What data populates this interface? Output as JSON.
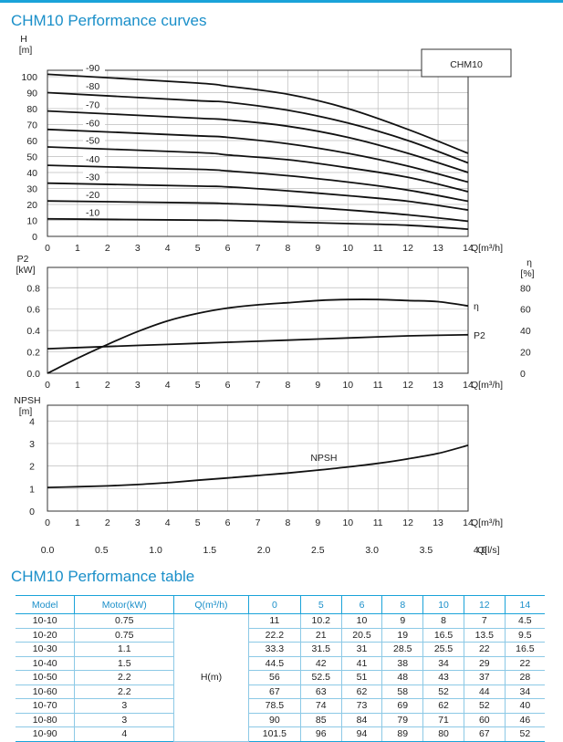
{
  "header": {
    "curves_title": "CHM10 Performance curves",
    "table_title": "CHM10 Performance table"
  },
  "chart_data": [
    {
      "type": "line",
      "name": "H-Q curves",
      "legend_box": "CHM10",
      "ylabel_top": "H",
      "ylabel_unit": "[m]",
      "xlabel": "Q[m³/h]",
      "x_ticks": [
        "0",
        "1",
        "2",
        "3",
        "4",
        "5",
        "6",
        "7",
        "8",
        "9",
        "10",
        "11",
        "12",
        "13",
        "14"
      ],
      "y_ticks": [
        "0",
        "10",
        "20",
        "30",
        "40",
        "50",
        "60",
        "70",
        "80",
        "90",
        "100"
      ],
      "xlim": [
        0,
        14
      ],
      "ylim": [
        0,
        100
      ],
      "series": [
        {
          "name": "-10",
          "x": [
            0,
            5,
            6,
            8,
            10,
            12,
            14
          ],
          "y": [
            11,
            10.2,
            10,
            9,
            8,
            7,
            4.5
          ]
        },
        {
          "name": "-20",
          "x": [
            0,
            5,
            6,
            8,
            10,
            12,
            14
          ],
          "y": [
            22.2,
            21,
            20.5,
            19,
            16.5,
            13.5,
            9.5
          ]
        },
        {
          "name": "-30",
          "x": [
            0,
            5,
            6,
            8,
            10,
            12,
            14
          ],
          "y": [
            33.3,
            31.5,
            31,
            28.5,
            25.5,
            22,
            16.5
          ]
        },
        {
          "name": "-40",
          "x": [
            0,
            5,
            6,
            8,
            10,
            12,
            14
          ],
          "y": [
            44.5,
            42,
            41,
            38,
            34,
            29,
            22
          ]
        },
        {
          "name": "-50",
          "x": [
            0,
            5,
            6,
            8,
            10,
            12,
            14
          ],
          "y": [
            56,
            52.5,
            51,
            48,
            43,
            37,
            28
          ]
        },
        {
          "name": "-60",
          "x": [
            0,
            5,
            6,
            8,
            10,
            12,
            14
          ],
          "y": [
            67,
            63,
            62,
            58,
            52,
            44,
            34
          ]
        },
        {
          "name": "-70",
          "x": [
            0,
            5,
            6,
            8,
            10,
            12,
            14
          ],
          "y": [
            78.5,
            74,
            73,
            69,
            62,
            52,
            40
          ]
        },
        {
          "name": "-80",
          "x": [
            0,
            5,
            6,
            8,
            10,
            12,
            14
          ],
          "y": [
            90,
            85,
            84,
            79,
            71,
            60,
            46
          ]
        },
        {
          "name": "-90",
          "x": [
            0,
            5,
            6,
            8,
            10,
            12,
            14
          ],
          "y": [
            101.5,
            96,
            94,
            89,
            80,
            67,
            52
          ]
        }
      ]
    },
    {
      "type": "line",
      "name": "P2 and efficiency curves",
      "ylabel_left_top": "P2",
      "ylabel_left_unit": "[kW]",
      "ylabel_right_top": "η",
      "ylabel_right_unit": "[%]",
      "xlabel": "Q[m³/h]",
      "x_ticks": [
        "0",
        "1",
        "2",
        "3",
        "4",
        "5",
        "6",
        "7",
        "8",
        "9",
        "10",
        "11",
        "12",
        "13",
        "14"
      ],
      "y_left_ticks": [
        "0.0",
        "0.2",
        "0.4",
        "0.6",
        "0.8"
      ],
      "y_right_ticks": [
        "0",
        "20",
        "40",
        "60",
        "80"
      ],
      "xlim": [
        0,
        14
      ],
      "ylim_left": [
        0,
        0.9
      ],
      "ylim_right": [
        0,
        90
      ],
      "series": [
        {
          "name": "η",
          "axis": "right",
          "x": [
            0,
            1,
            2,
            3,
            4,
            5,
            6,
            7,
            8,
            9,
            10,
            11,
            12,
            13,
            14
          ],
          "y": [
            0,
            14,
            27,
            39,
            49,
            56,
            61,
            64,
            66,
            68,
            69,
            69,
            68,
            67,
            63
          ]
        },
        {
          "name": "P2",
          "axis": "left",
          "x": [
            0,
            2,
            4,
            6,
            8,
            10,
            12,
            14
          ],
          "y": [
            0.23,
            0.25,
            0.27,
            0.29,
            0.31,
            0.33,
            0.35,
            0.36
          ]
        }
      ]
    },
    {
      "type": "line",
      "name": "NPSH curve",
      "ylabel_top": "NPSH",
      "ylabel_unit": "[m]",
      "xlabel": "Q[m³/h]",
      "x2label": "Q[l/s]",
      "x_ticks": [
        "0",
        "1",
        "2",
        "3",
        "4",
        "5",
        "6",
        "7",
        "8",
        "9",
        "10",
        "11",
        "12",
        "13",
        "14"
      ],
      "x2_ticks": [
        "0.0",
        "0.5",
        "1.0",
        "1.5",
        "2.0",
        "2.5",
        "3.0",
        "3.5",
        "4.0"
      ],
      "y_ticks": [
        "0",
        "1",
        "2",
        "3",
        "4"
      ],
      "xlim": [
        0,
        14
      ],
      "ylim": [
        0,
        4
      ],
      "series": [
        {
          "name": "NPSH",
          "x": [
            0,
            1,
            2,
            3,
            4,
            5,
            6,
            7,
            8,
            9,
            10,
            11,
            12,
            13,
            14
          ],
          "y": [
            1.05,
            1.08,
            1.12,
            1.18,
            1.26,
            1.37,
            1.47,
            1.58,
            1.69,
            1.82,
            1.96,
            2.12,
            2.32,
            2.56,
            2.92
          ]
        }
      ]
    }
  ],
  "table": {
    "headers": [
      "Model",
      "Motor(kW)",
      "Q(m³/h)",
      "0",
      "5",
      "6",
      "8",
      "10",
      "12",
      "14"
    ],
    "h_label": "H(m)",
    "rows": [
      {
        "model": "10-10",
        "motor": "0.75",
        "h": [
          "11",
          "10.2",
          "10",
          "9",
          "8",
          "7",
          "4.5"
        ]
      },
      {
        "model": "10-20",
        "motor": "0.75",
        "h": [
          "22.2",
          "21",
          "20.5",
          "19",
          "16.5",
          "13.5",
          "9.5"
        ]
      },
      {
        "model": "10-30",
        "motor": "1.1",
        "h": [
          "33.3",
          "31.5",
          "31",
          "28.5",
          "25.5",
          "22",
          "16.5"
        ]
      },
      {
        "model": "10-40",
        "motor": "1.5",
        "h": [
          "44.5",
          "42",
          "41",
          "38",
          "34",
          "29",
          "22"
        ]
      },
      {
        "model": "10-50",
        "motor": "2.2",
        "h": [
          "56",
          "52.5",
          "51",
          "48",
          "43",
          "37",
          "28"
        ]
      },
      {
        "model": "10-60",
        "motor": "2.2",
        "h": [
          "67",
          "63",
          "62",
          "58",
          "52",
          "44",
          "34"
        ]
      },
      {
        "model": "10-70",
        "motor": "3",
        "h": [
          "78.5",
          "74",
          "73",
          "69",
          "62",
          "52",
          "40"
        ]
      },
      {
        "model": "10-80",
        "motor": "3",
        "h": [
          "90",
          "85",
          "84",
          "79",
          "71",
          "60",
          "46"
        ]
      },
      {
        "model": "10-90",
        "motor": "4",
        "h": [
          "101.5",
          "96",
          "94",
          "89",
          "80",
          "67",
          "52"
        ]
      }
    ]
  }
}
